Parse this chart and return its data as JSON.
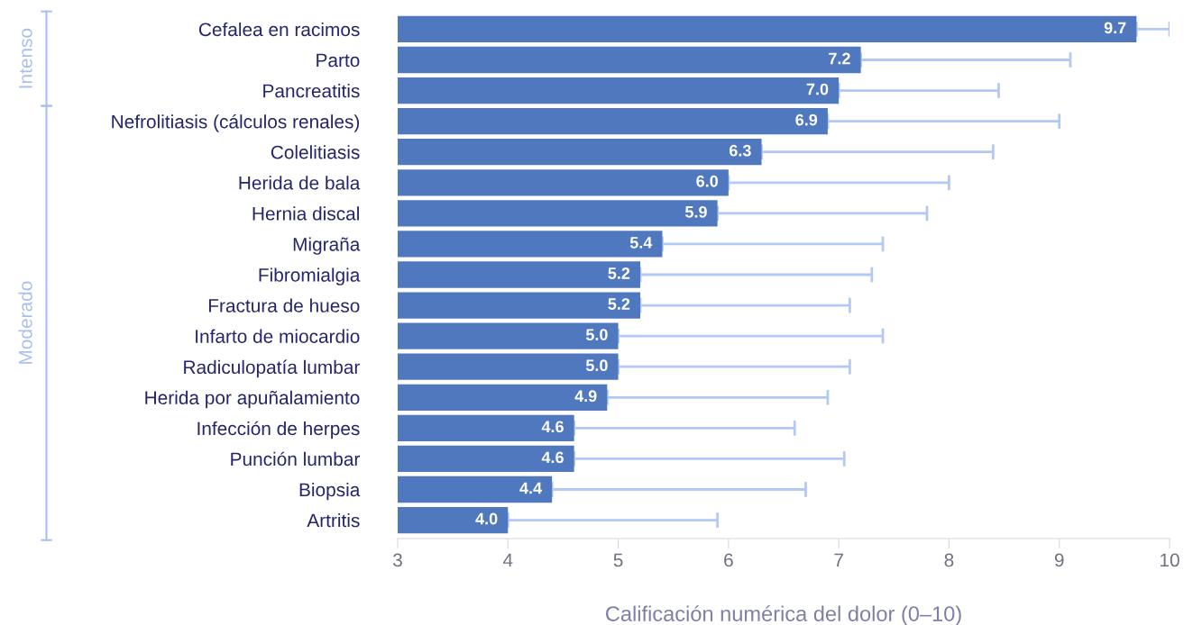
{
  "chart_data": {
    "type": "bar",
    "orientation": "horizontal",
    "xlabel": "Calificación numérica del dolor (0–10)",
    "categories": [
      "Cefalea en racimos",
      "Parto",
      "Pancreatitis",
      "Nefrolitiasis (cálculos renales)",
      "Colelitiasis",
      "Herida de bala",
      "Hernia discal",
      "Migraña",
      "Fibromialgia",
      "Fractura de hueso",
      "Infarto de miocardio",
      "Radiculopatía lumbar",
      "Herida por apuñalamiento",
      "Infección de herpes",
      "Punción lumbar",
      "Biopsia",
      "Artritis"
    ],
    "values": [
      9.7,
      7.2,
      7.0,
      6.9,
      6.3,
      6.0,
      5.9,
      5.4,
      5.2,
      5.2,
      5.0,
      5.0,
      4.9,
      4.6,
      4.6,
      4.4,
      4.0
    ],
    "value_labels": [
      "9.7",
      "7.2",
      "7.0",
      "6.9",
      "6.3",
      "6.0",
      "5.9",
      "5.4",
      "5.2",
      "5.2",
      "5.0",
      "5.0",
      "4.9",
      "4.6",
      "4.6",
      "4.4",
      "4.0"
    ],
    "errors": [
      [
        9.7,
        10.0
      ],
      [
        7.2,
        9.1
      ],
      [
        7.0,
        8.45
      ],
      [
        6.9,
        9.0
      ],
      [
        6.3,
        8.4
      ],
      [
        6.0,
        8.0
      ],
      [
        5.9,
        7.8
      ],
      [
        5.4,
        7.4
      ],
      [
        5.2,
        7.3
      ],
      [
        5.2,
        7.1
      ],
      [
        5.0,
        7.4
      ],
      [
        5.0,
        7.1
      ],
      [
        4.9,
        6.9
      ],
      [
        4.6,
        6.6
      ],
      [
        4.6,
        7.05
      ],
      [
        4.4,
        6.7
      ],
      [
        4.0,
        5.9
      ]
    ],
    "color": "#5078be",
    "xlim": [
      3,
      10
    ],
    "xticks": [
      3,
      4,
      5,
      6,
      7,
      8,
      9,
      10
    ],
    "annotations": [
      "Intenso",
      "Moderado"
    ]
  }
}
